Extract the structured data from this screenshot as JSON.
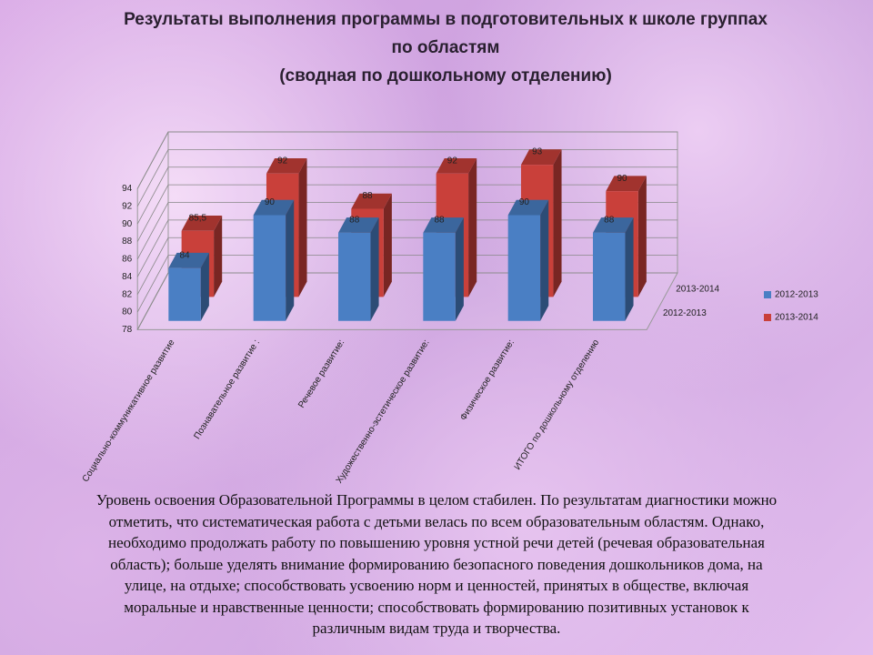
{
  "chart_data": {
    "type": "bar3d",
    "title": "Результаты выполнения программы в подготовительных к школе группах по областям",
    "subtitle": "(сводная по дошкольному отделению)",
    "categories": [
      "Социально-коммуникативное развитие",
      "Познавательное развитие :",
      "Речевое развитие:",
      "Художественно-эстетическое развитие:",
      "Физическое развитие:",
      "ИТОГО по дошкольному отделению"
    ],
    "series": [
      {
        "name": "2012-2013",
        "color": "#4a7fc4",
        "values": [
          84,
          90,
          88,
          88,
          90,
          88
        ]
      },
      {
        "name": "2013-2014",
        "color": "#c9403a",
        "values": [
          85.5,
          92,
          88,
          92,
          93,
          90
        ],
        "value_labels": [
          "85,5",
          "92",
          "88",
          "92",
          "93",
          "90"
        ]
      }
    ],
    "ylim": [
      78,
      94
    ],
    "yticks": [
      78,
      80,
      82,
      84,
      86,
      88,
      90,
      92,
      94
    ],
    "grid": true,
    "legend": "right"
  },
  "text_lines": [
    "Уровень освоения Образовательной Программы в целом стабилен. По результатам диагностики можно",
    "отметить, что систематическая работа с детьми велась по всем образовательным областям. Однако,",
    "необходимо продолжать работу по повышению уровня устной речи детей (речевая образовательная",
    "область); больше уделять внимание формированию безопасного поведения дошкольников дома, на",
    "улице, на отдыхе; способствовать усвоению норм и ценностей, принятых в обществе, включая",
    "моральные и нравственные ценности; способствовать формированию позитивных установок к",
    "различным видам труда и творчества."
  ]
}
